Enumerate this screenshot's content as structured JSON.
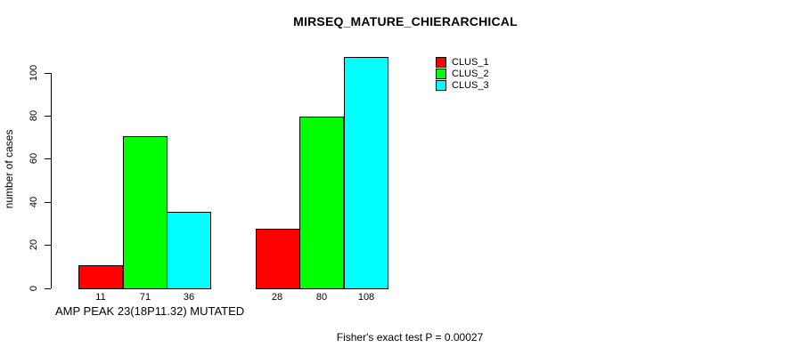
{
  "chart_data": {
    "type": "bar",
    "title": "MIRSEQ_MATURE_CHIERARCHICAL",
    "ylabel": "number of cases",
    "xlabel": "AMP PEAK 23(18P11.32) MUTATED",
    "footnote": "Fisher's exact test P = 0.00027",
    "yticks": [
      0,
      20,
      40,
      60,
      80,
      100
    ],
    "ylim": [
      0,
      108
    ],
    "grid": false,
    "legend_position": "top-right",
    "groups": 2,
    "series": [
      {
        "name": "CLUS_1",
        "color": "#ff0000",
        "values": [
          11,
          28
        ]
      },
      {
        "name": "CLUS_2",
        "color": "#00ff00",
        "values": [
          71,
          80
        ]
      },
      {
        "name": "CLUS_3",
        "color": "#00ffff",
        "values": [
          36,
          108
        ]
      }
    ],
    "bar_value_labels": [
      11,
      71,
      36,
      28,
      80,
      108
    ]
  }
}
